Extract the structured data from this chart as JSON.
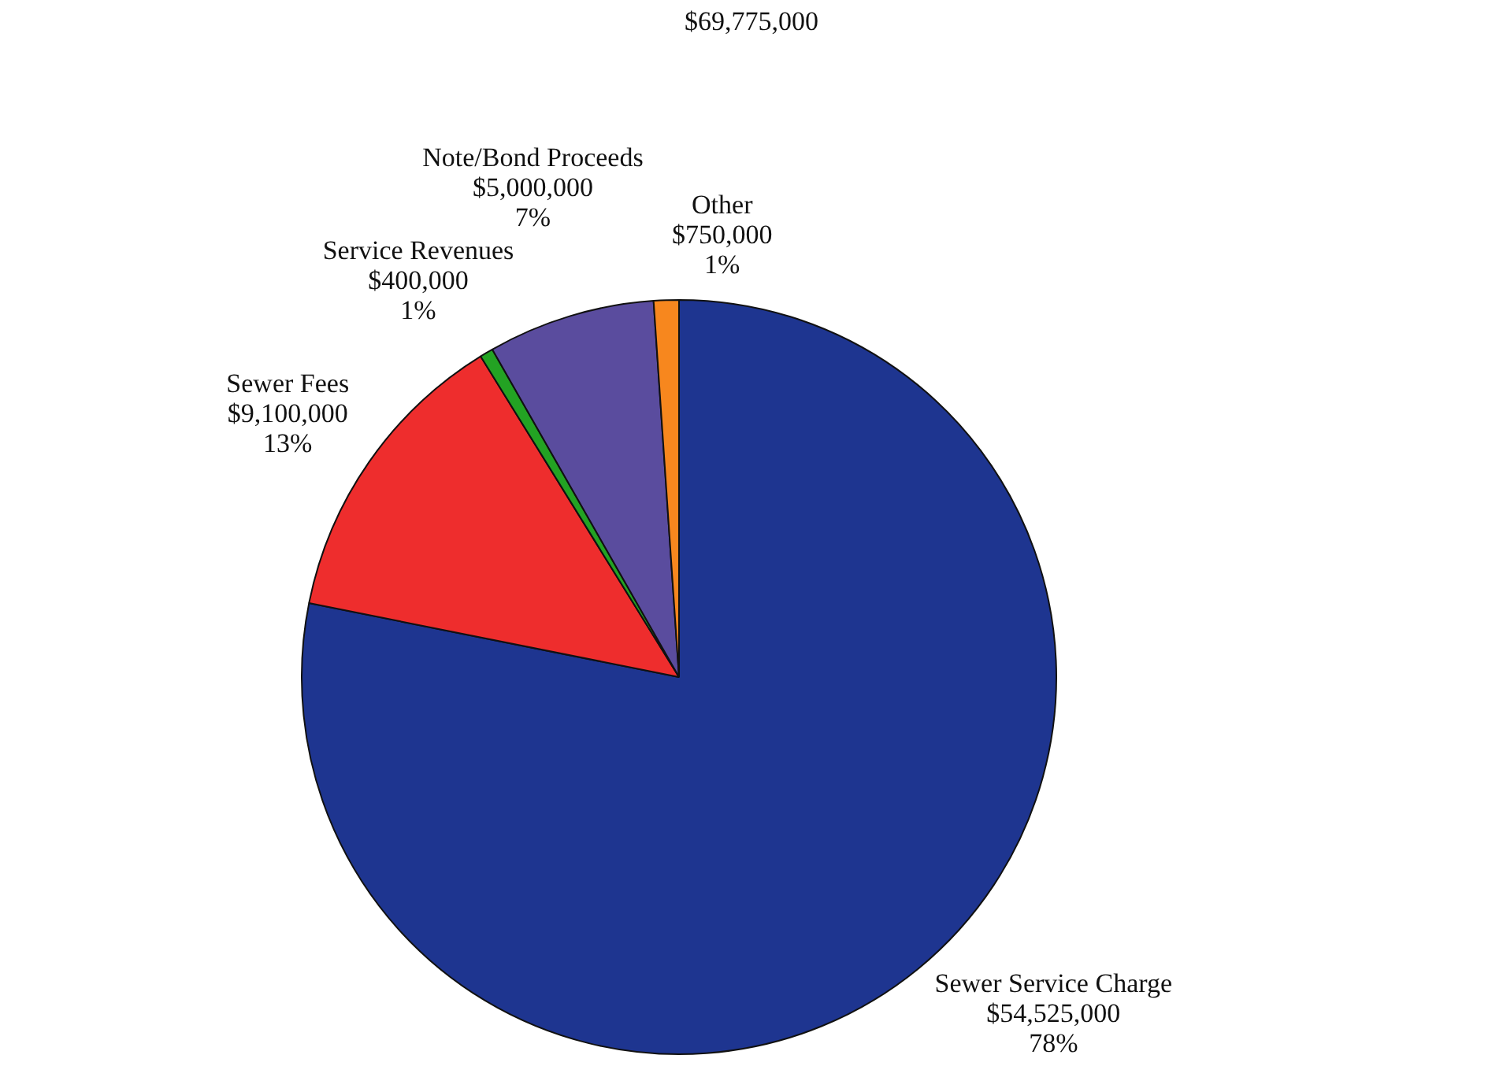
{
  "chart_data": {
    "type": "pie",
    "title": "$69,775,000",
    "categories": [
      "Sewer Service Charge",
      "Sewer Fees",
      "Service Revenues",
      "Note/Bond Proceeds",
      "Other"
    ],
    "values": [
      54525000,
      9100000,
      400000,
      5000000,
      750000
    ],
    "colors": [
      "#1e3590",
      "#ee2d2d",
      "#23a323",
      "#5a4c9e",
      "#f7871e"
    ],
    "value_labels": [
      "$54,525,000\n78%",
      "$9,100,000\n13%",
      "$400,000\n1%",
      "$5,000,000\n7%",
      "$750,000\n1%"
    ],
    "legend": false
  }
}
